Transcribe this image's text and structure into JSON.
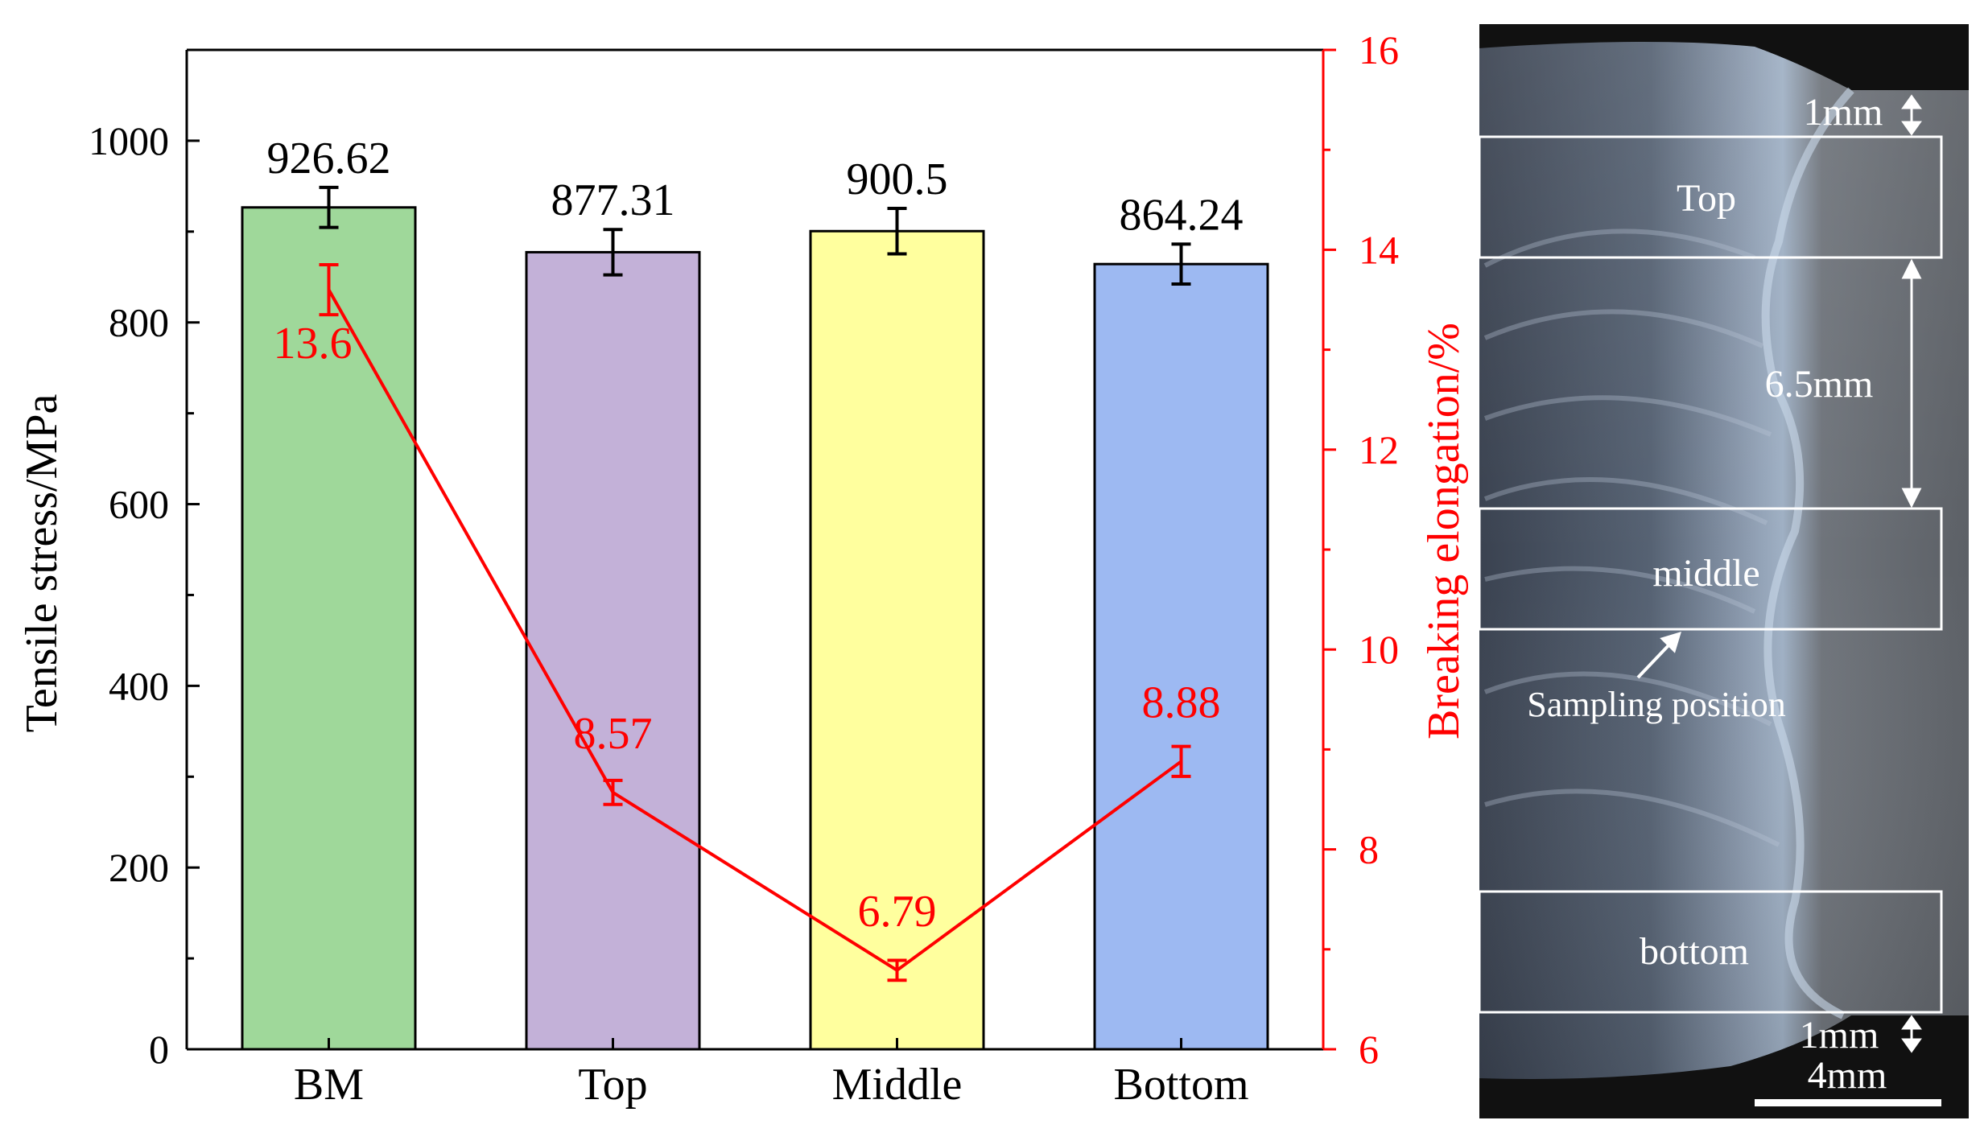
{
  "chart_data": {
    "type": "bar",
    "categories": [
      "BM",
      "Top",
      "Middle",
      "Bottom"
    ],
    "series": [
      {
        "type": "bar",
        "axis": "left",
        "values": [
          926.62,
          877.31,
          900.5,
          864.24
        ],
        "errors": [
          22,
          25,
          25,
          22
        ],
        "labels": [
          "926.62",
          "877.31",
          "900.5",
          "864.24"
        ],
        "colors": [
          "#9fd89a",
          "#c3b1d8",
          "#ffff9e",
          "#9db9f2"
        ]
      },
      {
        "type": "line",
        "axis": "right",
        "values": [
          13.6,
          8.57,
          6.79,
          8.88
        ],
        "errors": [
          0.25,
          0.12,
          0.1,
          0.15
        ],
        "labels": [
          "13.6",
          "8.57",
          "6.79",
          "8.88"
        ],
        "color": "#ff0000"
      }
    ],
    "ylabel": "Tensile stress/MPa",
    "ylim": [
      0,
      1100
    ],
    "yticks": [
      "0",
      "200",
      "400",
      "600",
      "800",
      "1000"
    ],
    "y2label": "Breaking elongation/%",
    "y2lim": [
      6,
      16
    ],
    "y2ticks": [
      "6",
      "8",
      "10",
      "12",
      "14",
      "16"
    ]
  },
  "micrograph": {
    "labels": {
      "top_gap": "1mm",
      "top_region": "Top",
      "spacing": "6.5mm",
      "middle_region": "middle",
      "sampling": "Sampling position",
      "bottom_region": "bottom",
      "bottom_gap": "1mm",
      "scale_bar": "4mm"
    }
  }
}
